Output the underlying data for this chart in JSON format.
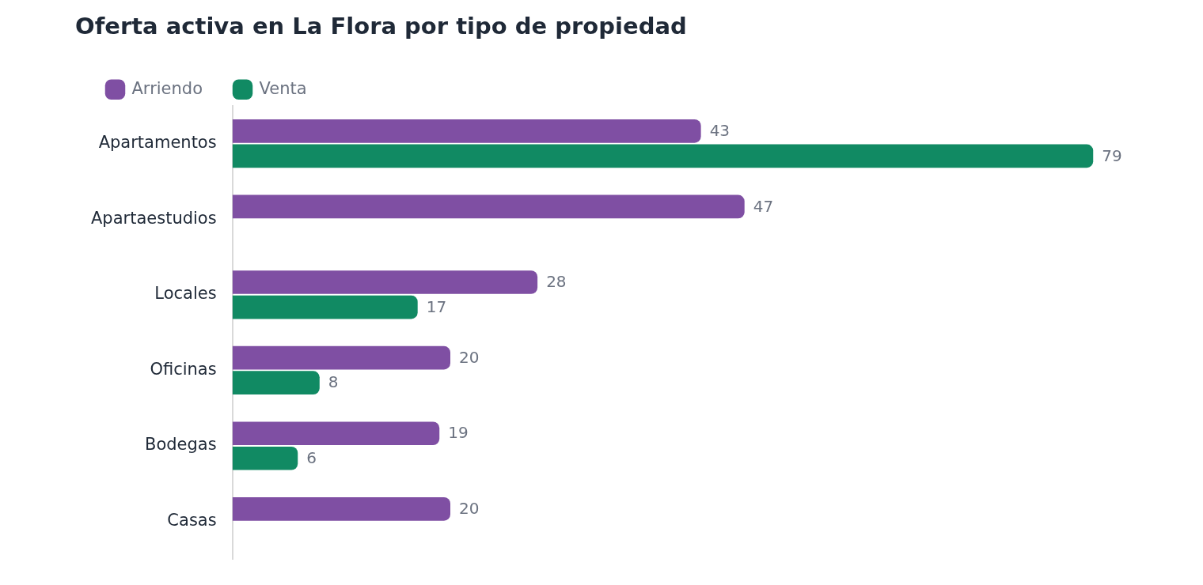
{
  "chart_data": {
    "type": "bar",
    "orientation": "horizontal",
    "title": "Oferta activa en La Flora por tipo de propiedad",
    "categories": [
      "Apartamentos",
      "Apartaestudios",
      "Locales",
      "Oficinas",
      "Bodegas",
      "Casas"
    ],
    "series": [
      {
        "name": "Arriendo",
        "color": "#7f4fa3",
        "values": [
          43,
          47,
          28,
          20,
          19,
          20
        ]
      },
      {
        "name": "Venta",
        "color": "#118a63",
        "values": [
          79,
          null,
          17,
          8,
          6,
          null
        ]
      }
    ],
    "data_labels": true,
    "legend": "top left"
  }
}
